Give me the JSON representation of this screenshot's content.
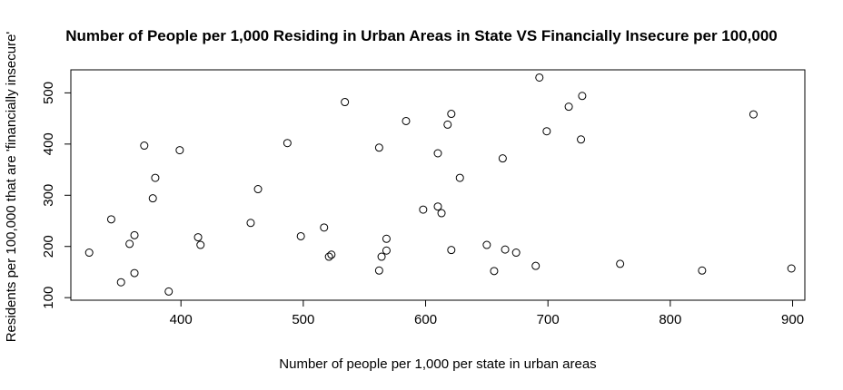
{
  "chart_data": {
    "type": "scatter",
    "title": "Number of People per 1,000 Residing in Urban Areas in State VS Financially Insecure per 100,000",
    "xlabel": "Number of people per 1,000 per state in urban areas",
    "ylabel": "Residents per 100,000 that are 'financially insecure'",
    "xlim": [
      310,
      910
    ],
    "ylim": [
      95,
      545
    ],
    "xticks": [
      400,
      500,
      600,
      700,
      800,
      900
    ],
    "yticks": [
      100,
      200,
      300,
      400,
      500
    ],
    "xtick_labels": [
      "400",
      "500",
      "600",
      "700",
      "800",
      "900"
    ],
    "ytick_labels": [
      "100",
      "200",
      "300",
      "400",
      "500"
    ],
    "grid": false,
    "marker": "open-circle",
    "points": [
      {
        "x": 325,
        "y": 188
      },
      {
        "x": 343,
        "y": 253
      },
      {
        "x": 351,
        "y": 130
      },
      {
        "x": 358,
        "y": 205
      },
      {
        "x": 362,
        "y": 222
      },
      {
        "x": 362,
        "y": 148
      },
      {
        "x": 370,
        "y": 397
      },
      {
        "x": 377,
        "y": 294
      },
      {
        "x": 379,
        "y": 334
      },
      {
        "x": 390,
        "y": 112
      },
      {
        "x": 399,
        "y": 388
      },
      {
        "x": 414,
        "y": 218
      },
      {
        "x": 416,
        "y": 203
      },
      {
        "x": 457,
        "y": 246
      },
      {
        "x": 463,
        "y": 312
      },
      {
        "x": 487,
        "y": 402
      },
      {
        "x": 498,
        "y": 220
      },
      {
        "x": 517,
        "y": 237
      },
      {
        "x": 521,
        "y": 180
      },
      {
        "x": 523,
        "y": 184
      },
      {
        "x": 534,
        "y": 482
      },
      {
        "x": 562,
        "y": 393
      },
      {
        "x": 562,
        "y": 153
      },
      {
        "x": 564,
        "y": 180
      },
      {
        "x": 568,
        "y": 215
      },
      {
        "x": 568,
        "y": 192
      },
      {
        "x": 584,
        "y": 445
      },
      {
        "x": 598,
        "y": 272
      },
      {
        "x": 610,
        "y": 382
      },
      {
        "x": 610,
        "y": 278
      },
      {
        "x": 613,
        "y": 265
      },
      {
        "x": 618,
        "y": 438
      },
      {
        "x": 621,
        "y": 459
      },
      {
        "x": 621,
        "y": 193
      },
      {
        "x": 628,
        "y": 334
      },
      {
        "x": 650,
        "y": 203
      },
      {
        "x": 656,
        "y": 152
      },
      {
        "x": 663,
        "y": 372
      },
      {
        "x": 665,
        "y": 194
      },
      {
        "x": 674,
        "y": 188
      },
      {
        "x": 690,
        "y": 162
      },
      {
        "x": 693,
        "y": 530
      },
      {
        "x": 699,
        "y": 425
      },
      {
        "x": 717,
        "y": 473
      },
      {
        "x": 727,
        "y": 409
      },
      {
        "x": 728,
        "y": 494
      },
      {
        "x": 759,
        "y": 166
      },
      {
        "x": 826,
        "y": 153
      },
      {
        "x": 868,
        "y": 458
      },
      {
        "x": 899,
        "y": 157
      }
    ]
  }
}
